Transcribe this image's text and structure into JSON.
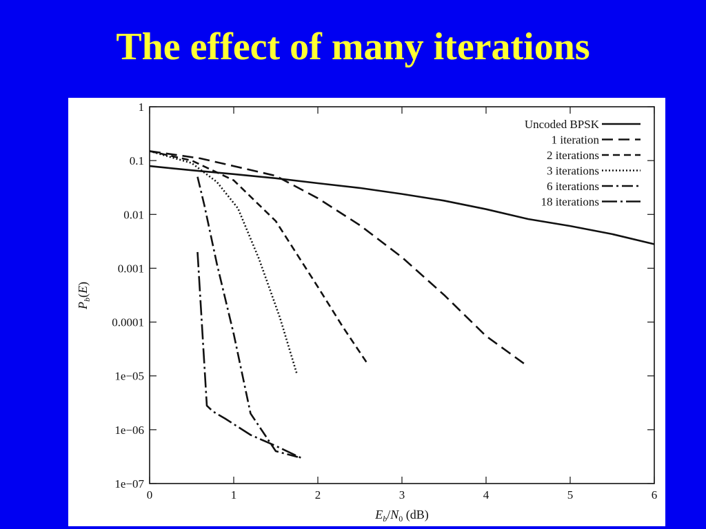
{
  "slide": {
    "title": "The effect of many iterations",
    "background_color": "#0000f2",
    "title_color": "#ffff33"
  },
  "chart_data": {
    "type": "line",
    "title": "",
    "xlabel": "E_b/N_0 (dB)",
    "ylabel": "P_b(E)",
    "xlim": [
      0,
      6
    ],
    "ylim": [
      1e-07,
      1
    ],
    "yscale": "log",
    "x_ticks": [
      0,
      1,
      2,
      3,
      4,
      5,
      6
    ],
    "x_tick_labels": [
      "0",
      "1",
      "2",
      "3",
      "4",
      "5",
      "6"
    ],
    "y_ticks": [
      1,
      0.1,
      0.01,
      0.001,
      0.0001,
      1e-05,
      1e-06,
      1e-07
    ],
    "y_tick_labels": [
      "1",
      "0.1",
      "0.01",
      "0.001",
      "0.0001",
      "1e−05",
      "1e−06",
      "1e−07"
    ],
    "grid": false,
    "legend_position": "top-right",
    "series": [
      {
        "name": "Uncoded BPSK",
        "style": "solid",
        "x": [
          0,
          0.5,
          1,
          1.5,
          2,
          2.5,
          3,
          3.5,
          4,
          4.5,
          5,
          5.5,
          6
        ],
        "y": [
          0.079,
          0.066,
          0.056,
          0.047,
          0.038,
          0.031,
          0.024,
          0.018,
          0.0125,
          0.0082,
          0.0061,
          0.0043,
          0.0028
        ]
      },
      {
        "name": "1 iteration",
        "style": "dash-long",
        "x": [
          0,
          0.6,
          1.0,
          1.5,
          2.0,
          2.5,
          3.0,
          3.5,
          4.0,
          4.45
        ],
        "y": [
          0.15,
          0.11,
          0.079,
          0.052,
          0.02,
          0.0063,
          0.0016,
          0.00032,
          5.5e-05,
          1.7e-05
        ]
      },
      {
        "name": "2 iterations",
        "style": "dash-short",
        "x": [
          0,
          0.5,
          1.0,
          1.5,
          2.0,
          2.3,
          2.6
        ],
        "y": [
          0.15,
          0.1,
          0.043,
          0.0075,
          0.00045,
          8e-05,
          1.6e-05
        ]
      },
      {
        "name": "3 iterations",
        "style": "dotted",
        "x": [
          0,
          0.5,
          0.8,
          1.05,
          1.3,
          1.55,
          1.75
        ],
        "y": [
          0.15,
          0.09,
          0.04,
          0.013,
          0.0015,
          0.00012,
          1.1e-05
        ]
      },
      {
        "name": "6 iterations",
        "style": "dash-dot",
        "x": [
          0.57,
          0.65,
          0.8,
          1.0,
          1.2,
          1.5,
          1.8
        ],
        "y": [
          0.05,
          0.015,
          0.0012,
          6e-05,
          2e-06,
          4e-07,
          3e-07
        ]
      },
      {
        "name": "18 iterations",
        "style": "dash-dot-long",
        "x": [
          0.57,
          0.68,
          0.75,
          0.9,
          1.2,
          1.5,
          1.8
        ],
        "y": [
          0.002,
          2.8e-06,
          2.2e-06,
          1.6e-06,
          8e-07,
          5e-07,
          3e-07
        ]
      }
    ]
  }
}
